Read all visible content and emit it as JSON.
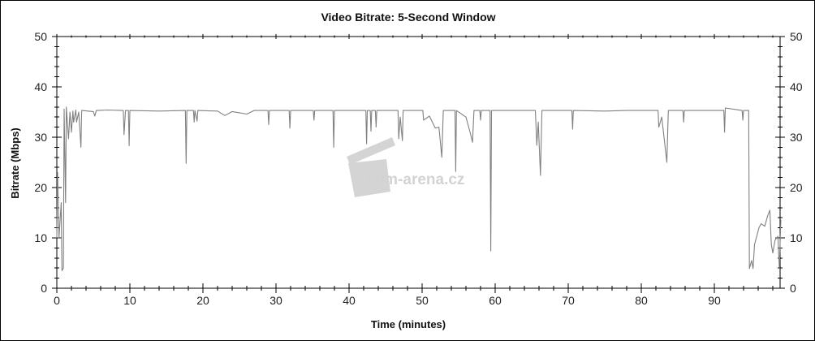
{
  "chart_data": {
    "type": "line",
    "title": "Video Bitrate: 5-Second Window",
    "xlabel": "Time (minutes)",
    "ylabel": "Bitrate (Mbps)",
    "xlim": [
      0,
      99
    ],
    "ylim": [
      0,
      50
    ],
    "x_ticks": [
      0,
      10,
      20,
      30,
      40,
      50,
      60,
      70,
      80,
      90
    ],
    "y_ticks": [
      0,
      10,
      20,
      30,
      40,
      50
    ],
    "y_ticks_right": true,
    "grid": false,
    "line_color": "#808080",
    "series": [
      {
        "points": [
          [
            0,
            10
          ],
          [
            0.1,
            23
          ],
          [
            0.3,
            10
          ],
          [
            0.6,
            17
          ],
          [
            0.7,
            3.5
          ],
          [
            0.9,
            4
          ],
          [
            1.0,
            35.6
          ],
          [
            1.2,
            17
          ],
          [
            1.3,
            36
          ],
          [
            1.6,
            29.7
          ],
          [
            1.8,
            35
          ],
          [
            2.0,
            31
          ],
          [
            2.2,
            35.2
          ],
          [
            2.3,
            33
          ],
          [
            2.6,
            35.4
          ],
          [
            2.7,
            33
          ],
          [
            3.0,
            35
          ],
          [
            3.3,
            28
          ],
          [
            3.4,
            35.3
          ],
          [
            5.0,
            35.1
          ],
          [
            5.2,
            34.2
          ],
          [
            5.4,
            35.3
          ],
          [
            7,
            35.4
          ],
          [
            9.1,
            35.3
          ],
          [
            9.2,
            30.5
          ],
          [
            9.4,
            35.3
          ],
          [
            9.8,
            35.3
          ],
          [
            9.9,
            28.3
          ],
          [
            10.0,
            35.3
          ],
          [
            14,
            35.2
          ],
          [
            17.6,
            35.3
          ],
          [
            17.7,
            24.8
          ],
          [
            17.8,
            35.3
          ],
          [
            18.7,
            35.3
          ],
          [
            18.8,
            33
          ],
          [
            18.9,
            35.3
          ],
          [
            19.2,
            33.2
          ],
          [
            19.3,
            35.3
          ],
          [
            22,
            35.2
          ],
          [
            23,
            34.3
          ],
          [
            24,
            35.1
          ],
          [
            26,
            34.6
          ],
          [
            27,
            35.3
          ],
          [
            28.9,
            35.3
          ],
          [
            29.0,
            32.5
          ],
          [
            29.1,
            35.3
          ],
          [
            31.8,
            35.3
          ],
          [
            31.9,
            31.8
          ],
          [
            32.0,
            35.3
          ],
          [
            35.1,
            35.3
          ],
          [
            35.2,
            33.4
          ],
          [
            35.3,
            35.3
          ],
          [
            37.8,
            35.3
          ],
          [
            37.9,
            28
          ],
          [
            38.0,
            35.3
          ],
          [
            42.3,
            35.3
          ],
          [
            42.4,
            28.7
          ],
          [
            42.5,
            35.3
          ],
          [
            42.9,
            35.3
          ],
          [
            43.0,
            31.2
          ],
          [
            43.1,
            35.3
          ],
          [
            43.6,
            35.3
          ],
          [
            43.7,
            32
          ],
          [
            43.8,
            35.3
          ],
          [
            46.7,
            35.3
          ],
          [
            46.8,
            29.7
          ],
          [
            47.0,
            34
          ],
          [
            47.3,
            29.3
          ],
          [
            47.4,
            35.3
          ],
          [
            50.1,
            35.3
          ],
          [
            50.2,
            33.4
          ],
          [
            51.0,
            34.2
          ],
          [
            51.8,
            31.8
          ],
          [
            52.3,
            32
          ],
          [
            52.7,
            26
          ],
          [
            52.9,
            35.3
          ],
          [
            54.5,
            35.3
          ],
          [
            54.6,
            23.2
          ],
          [
            54.7,
            35.3
          ],
          [
            56.0,
            34
          ],
          [
            56.6,
            30.8
          ],
          [
            56.9,
            29
          ],
          [
            57.1,
            35.3
          ],
          [
            57.9,
            35.3
          ],
          [
            58.0,
            33.4
          ],
          [
            58.1,
            35.3
          ],
          [
            59.3,
            35.3
          ],
          [
            59.4,
            7.4
          ],
          [
            59.5,
            35.3
          ],
          [
            62,
            35.3
          ],
          [
            65.5,
            35.3
          ],
          [
            65.7,
            28.4
          ],
          [
            65.9,
            33
          ],
          [
            66.2,
            22.4
          ],
          [
            66.4,
            35.3
          ],
          [
            70.5,
            35.3
          ],
          [
            70.6,
            31.6
          ],
          [
            70.7,
            35.3
          ],
          [
            75,
            35.2
          ],
          [
            78,
            35.3
          ],
          [
            82.3,
            35.3
          ],
          [
            82.4,
            32
          ],
          [
            82.8,
            34
          ],
          [
            83.5,
            25
          ],
          [
            83.7,
            35.3
          ],
          [
            85.7,
            35.3
          ],
          [
            85.8,
            33
          ],
          [
            85.9,
            35.3
          ],
          [
            88,
            35.3
          ],
          [
            91.3,
            35.3
          ],
          [
            91.4,
            31
          ],
          [
            91.5,
            35.8
          ],
          [
            93.8,
            35.3
          ],
          [
            93.9,
            33.4
          ],
          [
            94.0,
            35.3
          ],
          [
            94.7,
            35.3
          ],
          [
            94.8,
            3.9
          ],
          [
            95.1,
            5.5
          ],
          [
            95.3,
            3.9
          ],
          [
            95.5,
            8.7
          ],
          [
            95.8,
            10.3
          ],
          [
            96.1,
            12
          ],
          [
            96.4,
            12.8
          ],
          [
            96.9,
            12.3
          ],
          [
            97.3,
            14.4
          ],
          [
            97.6,
            15.5
          ],
          [
            97.8,
            8.7
          ],
          [
            98.0,
            7
          ],
          [
            98.3,
            9.5
          ],
          [
            98.7,
            10.3
          ],
          [
            98.9,
            4
          ],
          [
            99.1,
            13.6
          ]
        ]
      }
    ],
    "watermark": "Film-arena.cz"
  }
}
